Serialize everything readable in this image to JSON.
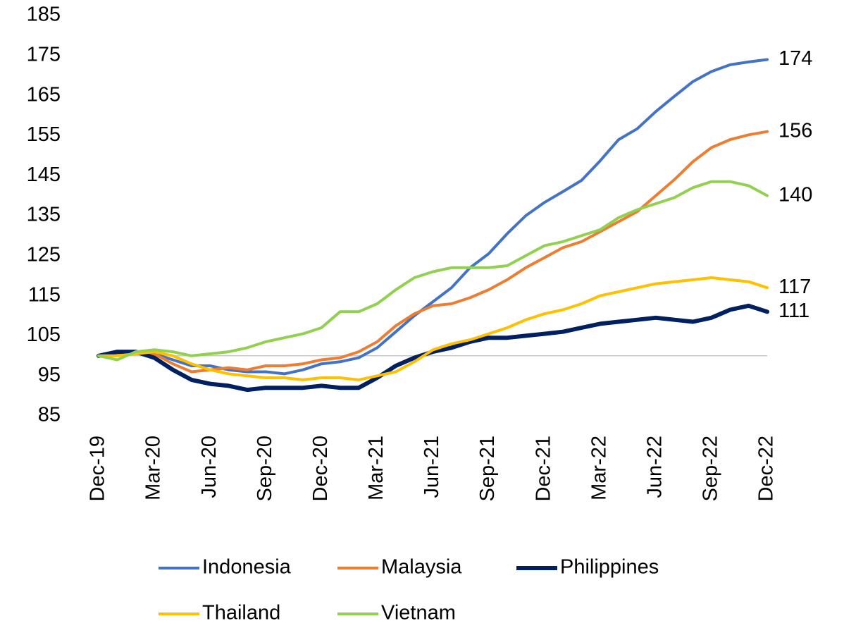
{
  "chart_data": {
    "type": "line",
    "categories": [
      "Dec-19",
      null,
      null,
      "Mar-20",
      null,
      null,
      "Jun-20",
      null,
      null,
      "Sep-20",
      null,
      null,
      "Dec-20",
      null,
      null,
      "Mar-21",
      null,
      null,
      "Jun-21",
      null,
      null,
      "Sep-21",
      null,
      null,
      "Dec-21",
      null,
      null,
      "Mar-22",
      null,
      null,
      "Jun-22",
      null,
      null,
      "Sep-22",
      null,
      null,
      "Dec-22"
    ],
    "series": [
      {
        "name": "Indonesia",
        "color": "#4472c4",
        "line_width": 4,
        "values": [
          100,
          101,
          101,
          100.5,
          99,
          97.5,
          97.5,
          96.5,
          96,
          96,
          95.5,
          96.5,
          98,
          98.5,
          99.5,
          102,
          106,
          110,
          113.5,
          117,
          122,
          125.5,
          130.5,
          135,
          138.3,
          141,
          143.8,
          148.7,
          154,
          156.7,
          161,
          164.8,
          168.5,
          171,
          172.7,
          173.4,
          174
        ]
      },
      {
        "name": "Malaysia",
        "color": "#ed7d31",
        "line_width": 4,
        "values": [
          100,
          100.5,
          100.5,
          100.5,
          98,
          96,
          96.5,
          97,
          96.5,
          97.5,
          97.5,
          98,
          99,
          99.5,
          101,
          103.5,
          107.5,
          110.5,
          112.5,
          113,
          114.5,
          116.5,
          119,
          122,
          124.5,
          127,
          128.5,
          131,
          133.5,
          136,
          140,
          144,
          148.5,
          152,
          154,
          155.2,
          156
        ]
      },
      {
        "name": "Philippines",
        "color": "#002060",
        "line_width": 6,
        "values": [
          100,
          101,
          101,
          99.5,
          96.5,
          94,
          93,
          92.5,
          91.5,
          92,
          92,
          92,
          92.5,
          92,
          92,
          94.5,
          97.5,
          99.5,
          101,
          102,
          103.5,
          104.5,
          104.5,
          105,
          105.5,
          106,
          107,
          108,
          108.5,
          109,
          109.5,
          109,
          108.5,
          109.5,
          111.5,
          112.5,
          111
        ]
      },
      {
        "name": "Thailand",
        "color": "#ffc000",
        "line_width": 4,
        "values": [
          100,
          100,
          100.5,
          101,
          100,
          98,
          96.5,
          95.5,
          95,
          94.5,
          94.5,
          94,
          94.5,
          94.5,
          94,
          95,
          96,
          98.5,
          101.5,
          103,
          104,
          105.5,
          107,
          109,
          110.5,
          111.5,
          113,
          115,
          116,
          117,
          118,
          118.5,
          119,
          119.5,
          119,
          118.5,
          117
        ]
      },
      {
        "name": "Vietnam",
        "color": "#92d050",
        "line_width": 4,
        "values": [
          100,
          99,
          101,
          101.5,
          101,
          100,
          100.5,
          101,
          102,
          103.5,
          104.5,
          105.5,
          107,
          111,
          111,
          113,
          116.5,
          119.5,
          121,
          122,
          122,
          122,
          122.5,
          125,
          127.5,
          128.5,
          130,
          131.5,
          134.5,
          136.5,
          138,
          139.5,
          142,
          143.5,
          143.5,
          142.5,
          140
        ]
      }
    ],
    "ylim": [
      85,
      185
    ],
    "yticks": [
      85,
      95,
      105,
      115,
      125,
      135,
      145,
      155,
      165,
      175,
      185
    ],
    "x_axis_crosses": 100,
    "label_last": true,
    "legend": "bottom"
  }
}
